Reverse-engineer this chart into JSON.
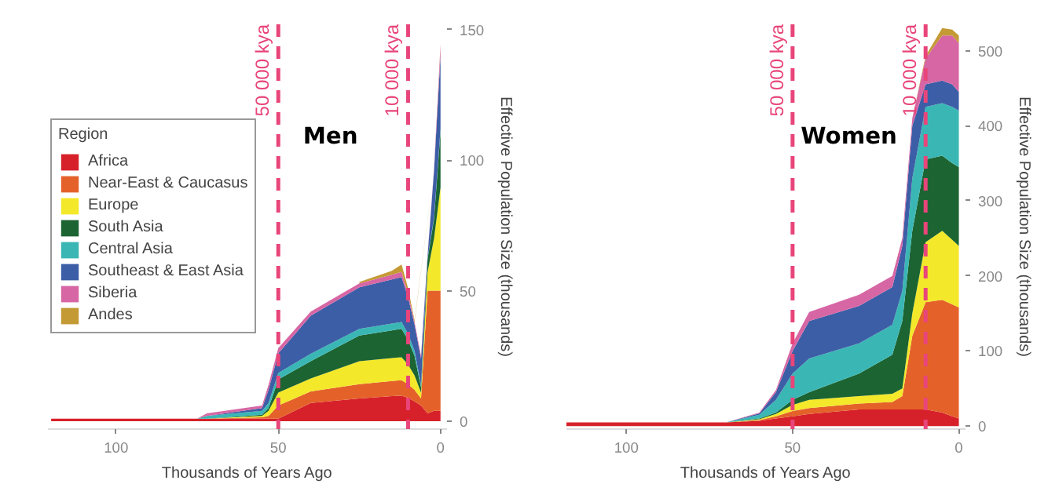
{
  "chart_data": [
    {
      "type": "area",
      "stacked": true,
      "annotations": [
        "Men"
      ],
      "xlabel": "Thousands of Years Ago",
      "ylabel": "Effective Population Size (thousands)",
      "legend_title": "Region",
      "legend": "left",
      "grid": false,
      "x": [
        120,
        75,
        72,
        55,
        53,
        50,
        40,
        25,
        15,
        12,
        10,
        8,
        6,
        4,
        2,
        0
      ],
      "xlim": [
        121,
        -2
      ],
      "xticks": [
        100,
        50,
        0
      ],
      "ylim": [
        -3,
        152
      ],
      "yticks": [
        0,
        50,
        100,
        150
      ],
      "ref_lines": [
        {
          "axis": "x",
          "value": 50,
          "label": "50 000 kya",
          "color": "#e8457a",
          "line_style": "dashed"
        },
        {
          "axis": "x",
          "value": 10,
          "label": "10 000 kya",
          "color": "#e8457a",
          "line_style": "dashed"
        }
      ],
      "series": [
        {
          "name": "Africa",
          "color": "#d7212a",
          "values": [
            1,
            1,
            1,
            1,
            1,
            1,
            7,
            8.7,
            9.6,
            9.8,
            9,
            7.6,
            6,
            3,
            4,
            4
          ]
        },
        {
          "name": "Near-East & Caucasus",
          "color": "#e4622a",
          "values": [
            0,
            0,
            0,
            0.5,
            1,
            5,
            4.4,
            5.5,
            5.8,
            5.9,
            5.2,
            4.4,
            2.7,
            47,
            46,
            46
          ]
        },
        {
          "name": "Europe",
          "color": "#f4e82a",
          "values": [
            0,
            0,
            0,
            0.5,
            2,
            5,
            5,
            8.8,
            8.8,
            8.8,
            7.5,
            5.5,
            2.3,
            7,
            20,
            39.5
          ]
        },
        {
          "name": "South Asia",
          "color": "#1c6432",
          "values": [
            0,
            0,
            0,
            0.5,
            1,
            5,
            6.6,
            9.8,
            10.6,
            10.9,
            9.5,
            7.5,
            2,
            5,
            7.5,
            21.5
          ]
        },
        {
          "name": "Central Asia",
          "color": "#3ab7b5",
          "values": [
            0,
            0,
            1,
            1.5,
            2,
            2.5,
            2.8,
            2.6,
            2.6,
            2.6,
            2.3,
            2,
            1,
            0.5,
            0.5,
            1
          ]
        },
        {
          "name": "Southeast & East Asia",
          "color": "#3c5ea6",
          "values": [
            0,
            0,
            0,
            1,
            5,
            7.5,
            14.6,
            15.9,
            16.9,
            17.2,
            14,
            10,
            10,
            0.5,
            18,
            28
          ]
        },
        {
          "name": "Siberia",
          "color": "#d766a4",
          "values": [
            0,
            0,
            1,
            1,
            2,
            2,
            1.6,
            1.5,
            1.8,
            2,
            1.5,
            1,
            1,
            0.5,
            0.5,
            4
          ]
        },
        {
          "name": "Andes",
          "color": "#c49a35",
          "values": [
            null,
            null,
            null,
            null,
            null,
            null,
            null,
            0.5,
            1.5,
            2.8,
            2,
            0.5,
            null,
            null,
            0,
            0.5
          ]
        }
      ]
    },
    {
      "type": "area",
      "stacked": true,
      "annotations": [
        "Women"
      ],
      "xlabel": "Thousands of Years Ago",
      "ylabel": "Effective Population Size (thousands)",
      "grid": false,
      "x": [
        118,
        70,
        60,
        55,
        50,
        45,
        30,
        20,
        17,
        14,
        10,
        5,
        2,
        0
      ],
      "xlim": [
        118,
        -2
      ],
      "xticks": [
        100,
        50,
        0
      ],
      "ylim": [
        -4,
        535
      ],
      "yticks": [
        0,
        100,
        200,
        300,
        400,
        500
      ],
      "ref_lines": [
        {
          "axis": "x",
          "value": 50,
          "label": "50 000 kya",
          "color": "#e8457a",
          "line_style": "dashed"
        },
        {
          "axis": "x",
          "value": 10,
          "label": "10 000 kya",
          "color": "#e8457a",
          "line_style": "dashed"
        }
      ],
      "series": [
        {
          "color": "#d7212a",
          "values": [
            5,
            5,
            7,
            10,
            13,
            16,
            22,
            22,
            22,
            22,
            22,
            18,
            13,
            10
          ]
        },
        {
          "color": "#e4622a",
          "values": [
            0,
            0,
            1,
            3,
            7,
            8,
            8,
            10,
            18,
            98,
            143,
            150,
            149,
            148
          ]
        },
        {
          "color": "#f4e82a",
          "values": [
            0,
            0,
            1,
            3,
            8,
            11,
            10,
            11,
            10,
            30,
            80,
            92,
            86,
            82
          ]
        },
        {
          "color": "#1c6432",
          "values": [
            0,
            0,
            1,
            2,
            7,
            10,
            30,
            52,
            90,
            110,
            110,
            100,
            102,
            105
          ]
        },
        {
          "color": "#3ab7b5",
          "values": [
            0,
            0,
            5,
            17,
            35,
            45,
            40,
            40,
            40,
            70,
            70,
            70,
            75,
            75
          ]
        },
        {
          "color": "#3c5ea6",
          "values": [
            0,
            0,
            2,
            10,
            30,
            50,
            50,
            50,
            60,
            70,
            30,
            30,
            30,
            25
          ]
        },
        {
          "color": "#d766a4",
          "values": [
            0,
            0,
            1,
            3,
            10,
            12,
            15,
            15,
            10,
            10,
            35,
            60,
            65,
            65
          ]
        },
        {
          "color": "#c49a35",
          "values": [
            0,
            0,
            0,
            0,
            0,
            0,
            0,
            0,
            0,
            0,
            3,
            10,
            8,
            10
          ]
        }
      ]
    }
  ]
}
